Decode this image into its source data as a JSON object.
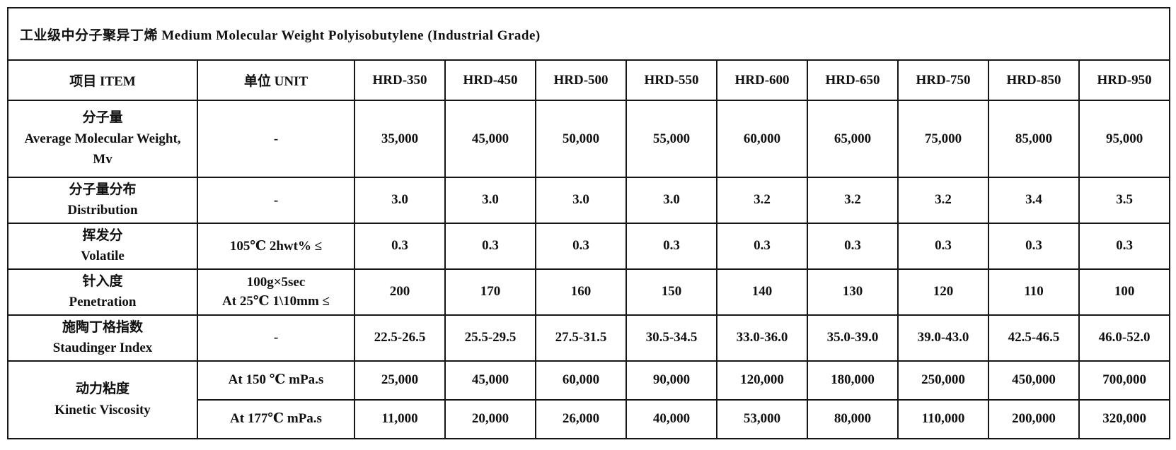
{
  "title": "工业级中分子聚异丁烯  Medium Molecular Weight Polyisobutylene (Industrial Grade)",
  "table": {
    "item_header": "项目 ITEM",
    "unit_header": "单位 UNIT",
    "grades": [
      "HRD-350",
      "HRD-450",
      "HRD-500",
      "HRD-550",
      "HRD-600",
      "HRD-650",
      "HRD-750",
      "HRD-850",
      "HRD-950"
    ],
    "rows": [
      {
        "item_lines": [
          "分子量",
          "Average Molecular Weight,",
          "Mv"
        ],
        "unit_lines": [
          "-"
        ],
        "values": [
          "35,000",
          "45,000",
          "50,000",
          "55,000",
          "60,000",
          "65,000",
          "75,000",
          "85,000",
          "95,000"
        ]
      },
      {
        "item_lines": [
          "分子量分布",
          "Distribution"
        ],
        "unit_lines": [
          "-"
        ],
        "values": [
          "3.0",
          "3.0",
          "3.0",
          "3.0",
          "3.2",
          "3.2",
          "3.2",
          "3.4",
          "3.5"
        ]
      },
      {
        "item_lines": [
          "挥发分",
          "Volatile"
        ],
        "unit_lines": [
          "105℃ 2hwt% ≤"
        ],
        "values": [
          "0.3",
          "0.3",
          "0.3",
          "0.3",
          "0.3",
          "0.3",
          "0.3",
          "0.3",
          "0.3"
        ]
      },
      {
        "item_lines": [
          "针入度",
          "Penetration"
        ],
        "unit_lines": [
          "100g×5sec",
          "At 25℃  1\\10mm ≤"
        ],
        "values": [
          "200",
          "170",
          "160",
          "150",
          "140",
          "130",
          "120",
          "110",
          "100"
        ]
      },
      {
        "item_lines": [
          "施陶丁格指数",
          "Staudinger Index"
        ],
        "unit_lines": [
          "-"
        ],
        "values": [
          "22.5-26.5",
          "25.5-29.5",
          "27.5-31.5",
          "30.5-34.5",
          "33.0-36.0",
          "35.0-39.0",
          "39.0-43.0",
          "42.5-46.5",
          "46.0-52.0"
        ]
      },
      {
        "item_lines": [
          "动力粘度",
          "Kinetic Viscosity"
        ],
        "item_rowspan": 2,
        "unit_lines": [
          "At 150 ℃ mPa.s"
        ],
        "values": [
          "25,000",
          "45,000",
          "60,000",
          "90,000",
          "120,000",
          "180,000",
          "250,000",
          "450,000",
          "700,000"
        ]
      },
      {
        "item_lines": null,
        "unit_lines": [
          "At 177℃  mPa.s"
        ],
        "values": [
          "11,000",
          "20,000",
          "26,000",
          "40,000",
          "53,000",
          "80,000",
          "110,000",
          "200,000",
          "320,000"
        ]
      }
    ]
  },
  "colors": {
    "border": "#161616",
    "text": "#111111",
    "background": "#ffffff"
  }
}
